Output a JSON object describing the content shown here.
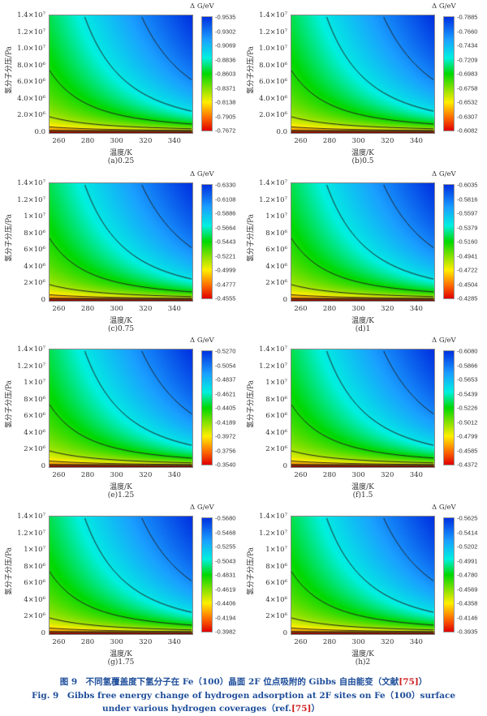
{
  "figure": {
    "caption_cn_prefix": "图 9　不同氢覆盖度下氢分子在 Fe（100）晶面 2F 位点吸附的 Gibbs 自由能变（文献",
    "caption_cn_ref": "[75]",
    "caption_cn_suffix": "）",
    "caption_en_line1": "Fig. 9　Gibbs free energy change of hydrogen adsorption at 2F sites on Fe（100）surface",
    "caption_en_line2_prefix": "under various hydrogen coverages（ref.",
    "caption_en_ref": "[75]",
    "caption_en_line2_suffix": "）"
  },
  "chart_data": [
    {
      "type": "heatmap",
      "label": "(a)0.25",
      "xlabel": "温度/K",
      "ylabel": "氢分子分压/Pa",
      "colorbar_title": "Δ G/eV",
      "xlim": [
        253,
        353
      ],
      "ylim": [
        0,
        14000000
      ],
      "xticks": [
        "260",
        "280",
        "300",
        "320",
        "340"
      ],
      "yticks": [
        "0.0",
        "2.0×10⁶",
        "4.0×10⁶",
        "6.0×10⁶",
        "8.0×10⁶",
        "1.0×10⁷",
        "1.2×10⁷",
        "1.4×10⁷"
      ],
      "colorbar_ticks": [
        "-0.9535",
        "-0.9302",
        "-0.9069",
        "-0.8836",
        "-0.8603",
        "-0.8371",
        "-0.8138",
        "-0.7905",
        "-0.7672"
      ]
    },
    {
      "type": "heatmap",
      "label": "(b)0.5",
      "xlabel": "温度/K",
      "ylabel": "氢分子分压/Pa",
      "colorbar_title": "Δ G/eV",
      "xlim": [
        253,
        353
      ],
      "ylim": [
        0,
        14000000
      ],
      "xticks": [
        "260",
        "280",
        "300",
        "320",
        "340"
      ],
      "yticks": [
        "0.0",
        "2.0×10⁶",
        "4.0×10⁶",
        "6.0×10⁶",
        "8.0×10⁶",
        "1.0×10⁷",
        "1.2×10⁷",
        "1.4×10⁷"
      ],
      "colorbar_ticks": [
        "-0.7885",
        "-0.7660",
        "-0.7434",
        "-0.7209",
        "-0.6983",
        "-0.6758",
        "-0.6532",
        "-0.6307",
        "-0.6082"
      ]
    },
    {
      "type": "heatmap",
      "label": "(c)0.75",
      "xlabel": "温度/K",
      "ylabel": "氢分子分压/Pa",
      "colorbar_title": "Δ G/eV",
      "xlim": [
        253,
        353
      ],
      "ylim": [
        0,
        14000000
      ],
      "xticks": [
        "260",
        "280",
        "300",
        "320",
        "340"
      ],
      "yticks": [
        "0",
        "2×10⁶",
        "4×10⁶",
        "6×10⁶",
        "8×10⁶",
        "1×10⁷",
        "1.2×10⁷",
        "1.4×10⁷"
      ],
      "colorbar_ticks": [
        "-0.6330",
        "-0.6108",
        "-0.5886",
        "-0.5664",
        "-0.5443",
        "-0.5221",
        "-0.4999",
        "-0.4777",
        "-0.4555"
      ]
    },
    {
      "type": "heatmap",
      "label": "(d)1",
      "xlabel": "温度/K",
      "ylabel": "氢分子分压/Pa",
      "colorbar_title": "Δ G/eV",
      "xlim": [
        253,
        353
      ],
      "ylim": [
        0,
        14000000
      ],
      "xticks": [
        "260",
        "280",
        "300",
        "320",
        "340"
      ],
      "yticks": [
        "0",
        "2×10⁶",
        "4×10⁶",
        "6×10⁶",
        "8×10⁶",
        "1×10⁷",
        "1.2×10⁷",
        "1.4×10⁷"
      ],
      "colorbar_ticks": [
        "-0.6035",
        "-0.5816",
        "-0.5597",
        "-0.5379",
        "-0.5160",
        "-0.4941",
        "-0.4722",
        "-0.4504",
        "-0.4285"
      ]
    },
    {
      "type": "heatmap",
      "label": "(e)1.25",
      "xlabel": "温度/K",
      "ylabel": "氢分子分压/Pa",
      "colorbar_title": "Δ G/eV",
      "xlim": [
        253,
        353
      ],
      "ylim": [
        0,
        14000000
      ],
      "xticks": [
        "260",
        "280",
        "300",
        "320",
        "340"
      ],
      "yticks": [
        "0",
        "2×10⁶",
        "4×10⁶",
        "6×10⁶",
        "8×10⁶",
        "1×10⁷",
        "1.2×10⁷",
        "1.4×10⁷"
      ],
      "colorbar_ticks": [
        "-0.5270",
        "-0.5054",
        "-0.4837",
        "-0.4621",
        "-0.4405",
        "-0.4189",
        "-0.3972",
        "-0.3756",
        "-0.3540"
      ]
    },
    {
      "type": "heatmap",
      "label": "(f)1.5",
      "xlabel": "温度/K",
      "ylabel": "氢分子分压/Pa",
      "colorbar_title": "Δ G/eV",
      "xlim": [
        253,
        353
      ],
      "ylim": [
        0,
        14000000
      ],
      "xticks": [
        "260",
        "280",
        "300",
        "320",
        "340"
      ],
      "yticks": [
        "0",
        "2×10⁶",
        "4×10⁶",
        "6×10⁶",
        "8×10⁶",
        "1×10⁷",
        "1.2×10⁷",
        "1.4×10⁷"
      ],
      "colorbar_ticks": [
        "-0.6080",
        "-0.5866",
        "-0.5653",
        "-0.5439",
        "-0.5226",
        "-0.5012",
        "-0.4799",
        "-0.4585",
        "-0.4372"
      ]
    },
    {
      "type": "heatmap",
      "label": "(g)1.75",
      "xlabel": "温度/K",
      "ylabel": "氢分子分压/Pa",
      "colorbar_title": "Δ G/eV",
      "xlim": [
        253,
        353
      ],
      "ylim": [
        0,
        14000000
      ],
      "xticks": [
        "260",
        "280",
        "300",
        "320",
        "340"
      ],
      "yticks": [
        "0",
        "2×10⁶",
        "4×10⁶",
        "6×10⁶",
        "8×10⁶",
        "1×10⁷",
        "1.2×10⁷",
        "1.4×10⁷"
      ],
      "colorbar_ticks": [
        "-0.5680",
        "-0.5468",
        "-0.5255",
        "-0.5043",
        "-0.4831",
        "-0.4619",
        "-0.4406",
        "-0.4194",
        "-0.3982"
      ]
    },
    {
      "type": "heatmap",
      "label": "(h)2",
      "xlabel": "温度/K",
      "ylabel": "氢分子分压/Pa",
      "colorbar_title": "Δ G/eV",
      "xlim": [
        253,
        353
      ],
      "ylim": [
        0,
        14000000
      ],
      "xticks": [
        "260",
        "280",
        "300",
        "320",
        "340"
      ],
      "yticks": [
        "0",
        "2×10⁶",
        "4×10⁶",
        "6×10⁶",
        "8×10⁶",
        "1×10⁷",
        "1.2×10⁷",
        "1.4×10⁷"
      ],
      "colorbar_ticks": [
        "-0.5625",
        "-0.5414",
        "-0.5202",
        "-0.4991",
        "-0.4780",
        "-0.4569",
        "-0.4358",
        "-0.4146",
        "-0.3935"
      ]
    }
  ]
}
